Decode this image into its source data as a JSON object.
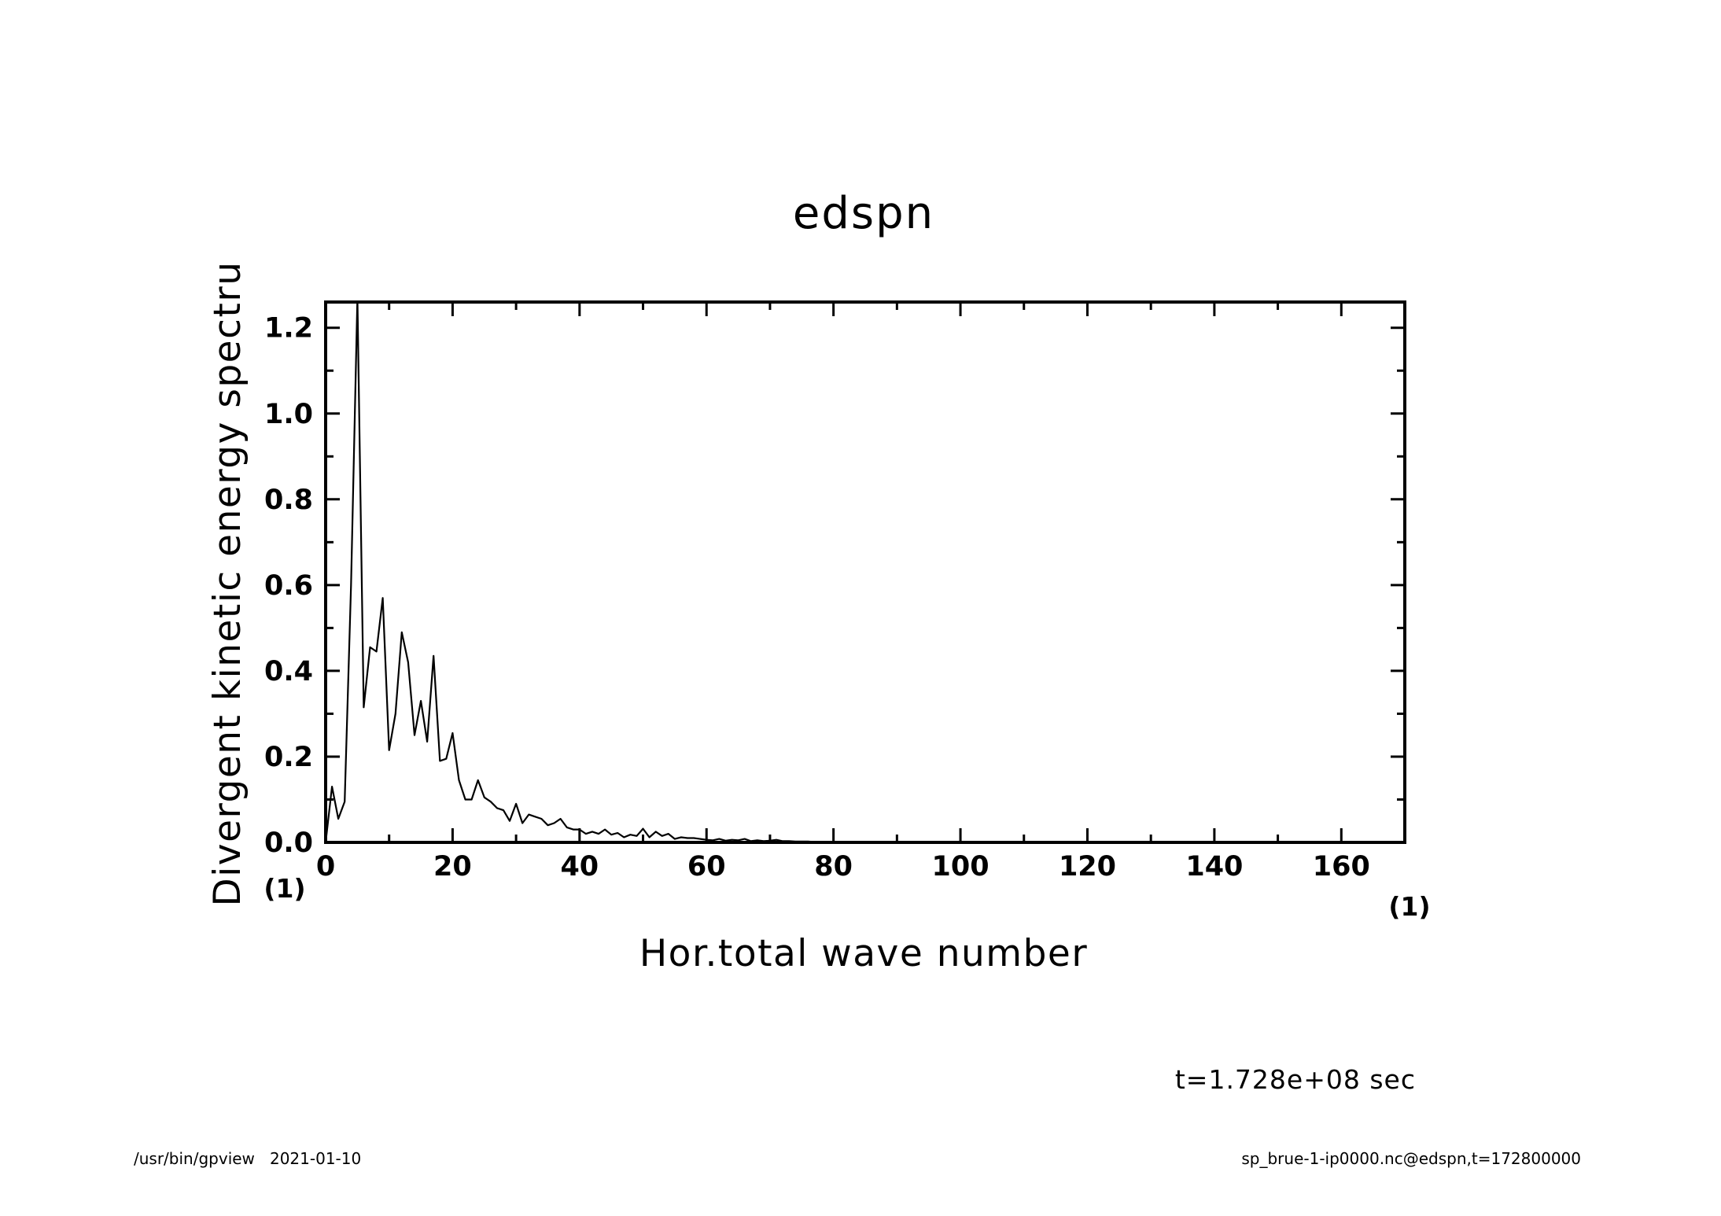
{
  "chart_data": {
    "type": "line",
    "title": "edspn",
    "xlabel": "Hor.total wave number",
    "ylabel": "Divergent kinetic energy spectru",
    "x_unit": "(1)",
    "y_unit": "(1)",
    "xlim": [
      0,
      170
    ],
    "ylim": [
      0,
      1.26
    ],
    "x_ticks": [
      0,
      20,
      40,
      60,
      80,
      100,
      120,
      140,
      160
    ],
    "x_tick_labels": [
      "0",
      "20",
      "40",
      "60",
      "80",
      "100",
      "120",
      "140",
      "160"
    ],
    "y_ticks": [
      0.0,
      0.2,
      0.4,
      0.6,
      0.8,
      1.0,
      1.2
    ],
    "y_tick_labels": [
      "0.0",
      "0.2",
      "0.4",
      "0.6",
      "0.8",
      "1.0",
      "1.2"
    ],
    "grid": false,
    "series": [
      {
        "values": [
          [
            0,
            0.0
          ],
          [
            1,
            0.13
          ],
          [
            2,
            0.055
          ],
          [
            3,
            0.095
          ],
          [
            4,
            0.6
          ],
          [
            5,
            1.27
          ],
          [
            6,
            0.315
          ],
          [
            7,
            0.455
          ],
          [
            8,
            0.445
          ],
          [
            9,
            0.57
          ],
          [
            10,
            0.215
          ],
          [
            11,
            0.3
          ],
          [
            12,
            0.49
          ],
          [
            13,
            0.42
          ],
          [
            14,
            0.25
          ],
          [
            15,
            0.33
          ],
          [
            16,
            0.235
          ],
          [
            17,
            0.435
          ],
          [
            18,
            0.19
          ],
          [
            19,
            0.195
          ],
          [
            20,
            0.255
          ],
          [
            21,
            0.145
          ],
          [
            22,
            0.1
          ],
          [
            23,
            0.1
          ],
          [
            24,
            0.145
          ],
          [
            25,
            0.105
          ],
          [
            26,
            0.095
          ],
          [
            27,
            0.08
          ],
          [
            28,
            0.075
          ],
          [
            29,
            0.05
          ],
          [
            30,
            0.09
          ],
          [
            31,
            0.045
          ],
          [
            32,
            0.065
          ],
          [
            33,
            0.06
          ],
          [
            34,
            0.055
          ],
          [
            35,
            0.04
          ],
          [
            36,
            0.045
          ],
          [
            37,
            0.055
          ],
          [
            38,
            0.035
          ],
          [
            39,
            0.03
          ],
          [
            40,
            0.03
          ],
          [
            41,
            0.02
          ],
          [
            42,
            0.025
          ],
          [
            43,
            0.02
          ],
          [
            44,
            0.03
          ],
          [
            45,
            0.018
          ],
          [
            46,
            0.022
          ],
          [
            47,
            0.012
          ],
          [
            48,
            0.018
          ],
          [
            49,
            0.015
          ],
          [
            50,
            0.032
          ],
          [
            51,
            0.012
          ],
          [
            52,
            0.025
          ],
          [
            53,
            0.015
          ],
          [
            54,
            0.02
          ],
          [
            55,
            0.008
          ],
          [
            56,
            0.012
          ],
          [
            57,
            0.01
          ],
          [
            58,
            0.01
          ],
          [
            59,
            0.008
          ],
          [
            60,
            0.006
          ],
          [
            61,
            0.005
          ],
          [
            62,
            0.008
          ],
          [
            63,
            0.004
          ],
          [
            64,
            0.006
          ],
          [
            65,
            0.005
          ],
          [
            66,
            0.008
          ],
          [
            67,
            0.003
          ],
          [
            68,
            0.005
          ],
          [
            69,
            0.003
          ],
          [
            70,
            0.004
          ],
          [
            71,
            0.006
          ],
          [
            72,
            0.003
          ],
          [
            73,
            0.003
          ],
          [
            74,
            0.002
          ],
          [
            75,
            0.002
          ],
          [
            76,
            0.002
          ],
          [
            77,
            0.001
          ],
          [
            78,
            0.001
          ],
          [
            79,
            0.001
          ],
          [
            80,
            0.001
          ],
          [
            81,
            0.001
          ],
          [
            82,
            0.001
          ],
          [
            83,
            0.0005
          ],
          [
            84,
            0.0005
          ],
          [
            85,
            0.0005
          ],
          [
            86,
            0.0003
          ],
          [
            87,
            0.0003
          ],
          [
            88,
            0.0002
          ],
          [
            89,
            0.0002
          ],
          [
            90,
            0.0001
          ],
          [
            100,
            0.0001
          ],
          [
            120,
            0.0
          ],
          [
            140,
            0.0
          ],
          [
            160,
            0.0
          ],
          [
            170,
            0.0
          ]
        ]
      }
    ]
  },
  "time_label": "t=1.728e+08 sec",
  "footer_left": "/usr/bin/gpview   2021-01-10",
  "footer_right": "sp_brue-1-ip0000.nc@edspn,t=172800000",
  "colors": {
    "line": "#000000",
    "background": "#ffffff"
  }
}
